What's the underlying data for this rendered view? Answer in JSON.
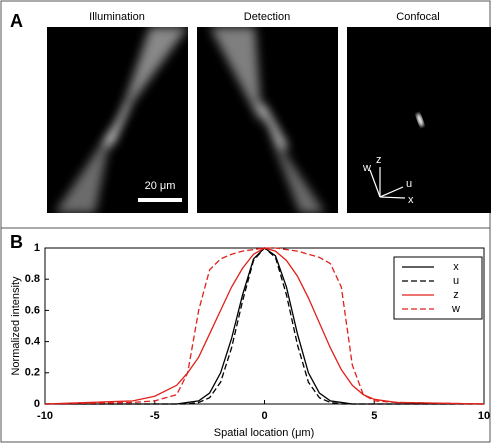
{
  "panel_a": {
    "label": "A",
    "images": [
      "Illumination",
      "Detection",
      "Confocal"
    ],
    "scale_bar": "20 μm",
    "axes": [
      "w",
      "z",
      "u",
      "x"
    ]
  },
  "chart_data": {
    "type": "line",
    "panel_label": "B",
    "xlabel": "Spatial location (μm)",
    "ylabel": "Normalized intensity",
    "x": [
      -10,
      -6,
      -5,
      -4,
      -3.5,
      -3,
      -2.5,
      -2,
      -1.5,
      -1,
      -0.5,
      0,
      0.5,
      1,
      1.5,
      2,
      2.5,
      3,
      3.5,
      4,
      4.5,
      5,
      6,
      10
    ],
    "series": [
      {
        "name": "x",
        "color": "#000000",
        "linestyle": "solid",
        "values": [
          0,
          0,
          0,
          0,
          0.01,
          0.02,
          0.07,
          0.2,
          0.42,
          0.7,
          0.93,
          1,
          0.95,
          0.75,
          0.45,
          0.2,
          0.07,
          0.02,
          0.01,
          0,
          0,
          0,
          0,
          0
        ]
      },
      {
        "name": "u",
        "color": "#000000",
        "linestyle": "dashed",
        "values": [
          0,
          0,
          0,
          0,
          0,
          0.01,
          0.04,
          0.14,
          0.36,
          0.66,
          0.92,
          1,
          0.94,
          0.7,
          0.38,
          0.14,
          0.04,
          0.01,
          0,
          0,
          0,
          0,
          0,
          0
        ]
      },
      {
        "name": "z",
        "color": "#e0201b",
        "linestyle": "solid",
        "values": [
          0,
          0.02,
          0.05,
          0.12,
          0.2,
          0.3,
          0.45,
          0.6,
          0.75,
          0.87,
          0.96,
          1,
          0.98,
          0.92,
          0.82,
          0.68,
          0.52,
          0.36,
          0.22,
          0.12,
          0.06,
          0.03,
          0.01,
          0
        ]
      },
      {
        "name": "w",
        "color": "#e0201b",
        "linestyle": "dashed",
        "values": [
          0,
          0.01,
          0.02,
          0.06,
          0.2,
          0.6,
          0.86,
          0.93,
          0.96,
          0.98,
          0.99,
          1,
          1,
          0.99,
          0.98,
          0.96,
          0.94,
          0.9,
          0.75,
          0.25,
          0.06,
          0.02,
          0.01,
          0
        ]
      }
    ],
    "xlim": [
      -10,
      10
    ],
    "xticks": [
      -10,
      -5,
      0,
      5,
      10
    ],
    "ylim": [
      0,
      1
    ],
    "yticks": [
      0,
      0.2,
      0.4,
      0.6,
      0.8,
      1
    ],
    "grid": false,
    "legend": "upper right"
  }
}
